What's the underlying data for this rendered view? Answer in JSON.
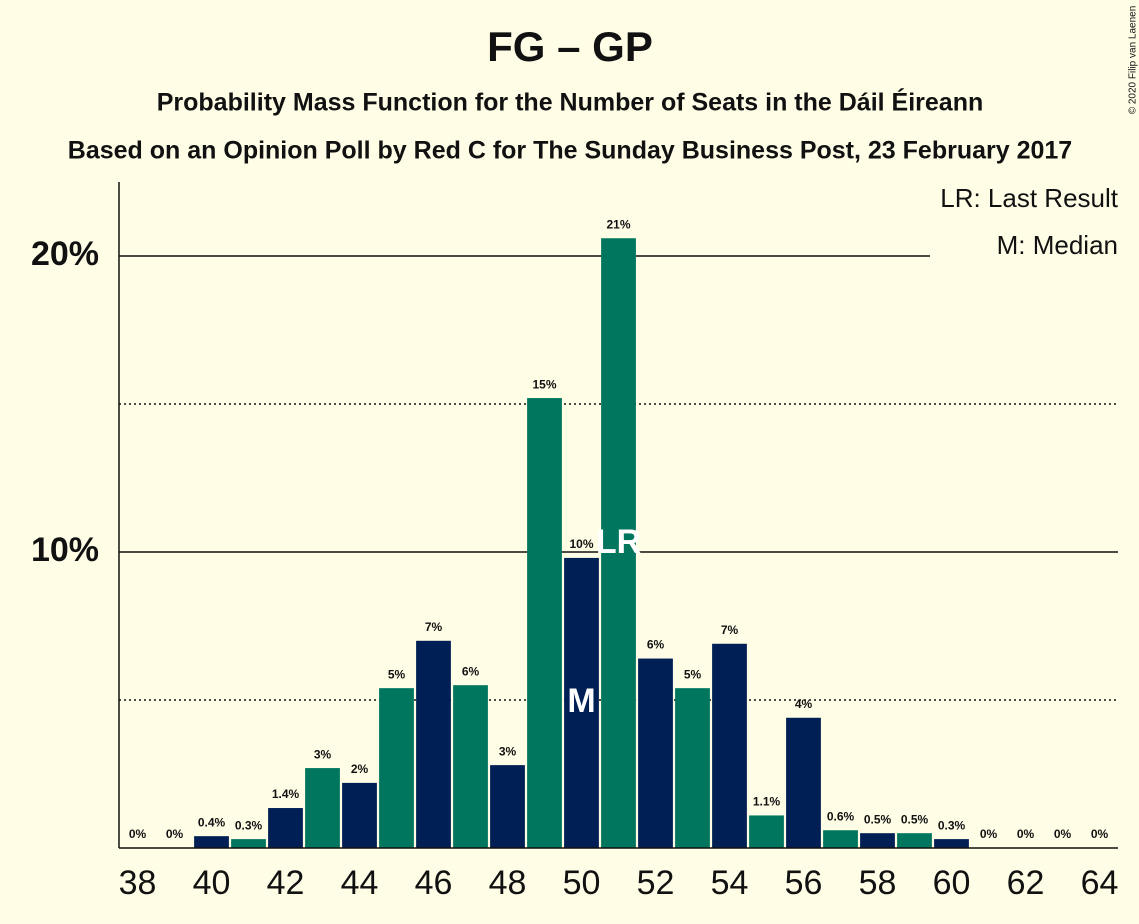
{
  "chart_data": {
    "type": "bar",
    "title": "FG – GP",
    "subtitle": "Probability Mass Function for the Number of Seats in the Dáil Éireann",
    "subtitle2": "Based on an Opinion Poll by Red C for The Sunday Business Post, 23 February 2017",
    "x": [
      38,
      39,
      40,
      41,
      42,
      43,
      44,
      45,
      46,
      47,
      48,
      49,
      50,
      51,
      52,
      53,
      54,
      55,
      56,
      57,
      58,
      59,
      60,
      61,
      62,
      63,
      64
    ],
    "values": [
      0,
      0,
      0.4,
      0.3,
      1.35,
      2.7,
      2.2,
      5.4,
      7,
      5.5,
      2.8,
      15.2,
      9.8,
      20.6,
      6.4,
      5.4,
      6.9,
      1.1,
      4.4,
      0.6,
      0.5,
      0.5,
      0.3,
      0,
      0,
      0,
      0
    ],
    "value_labels": [
      "0%",
      "0%",
      "0.4%",
      "0.3%",
      "1.4%",
      "3%",
      "2%",
      "5%",
      "7%",
      "6%",
      "3%",
      "15%",
      "10%",
      "21%",
      "6%",
      "5%",
      "7%",
      "1.1%",
      "4%",
      "0.6%",
      "0.5%",
      "0.5%",
      "0.3%",
      "0%",
      "0%",
      "0%",
      "0%"
    ],
    "colors": [
      "#001f54",
      "#00765e",
      "#001f54",
      "#00765e",
      "#001f54",
      "#00765e",
      "#001f54",
      "#00765e",
      "#001f54",
      "#00765e",
      "#001f54",
      "#00765e",
      "#001f54",
      "#00765e",
      "#001f54",
      "#00765e",
      "#001f54",
      "#00765e",
      "#001f54",
      "#00765e",
      "#001f54",
      "#00765e",
      "#001f54",
      "#00765e",
      "#001f54",
      "#00765e",
      "#001f54"
    ],
    "xlim": [
      37.5,
      64.5
    ],
    "xticks": [
      38,
      40,
      42,
      44,
      46,
      48,
      50,
      52,
      54,
      56,
      58,
      60,
      62,
      64
    ],
    "ylim": [
      0,
      22.5
    ],
    "yticks": [
      {
        "value": 10,
        "label": "10%"
      },
      {
        "value": 20,
        "label": "20%"
      }
    ],
    "minor_yticks": [
      5,
      15
    ],
    "annotations": [
      {
        "label": "LR",
        "x": 51
      },
      {
        "label": "M",
        "x": 50
      }
    ],
    "legend": [
      "LR: Last Result",
      "M: Median"
    ],
    "copyright": "© 2020 Filip van Laenen"
  }
}
